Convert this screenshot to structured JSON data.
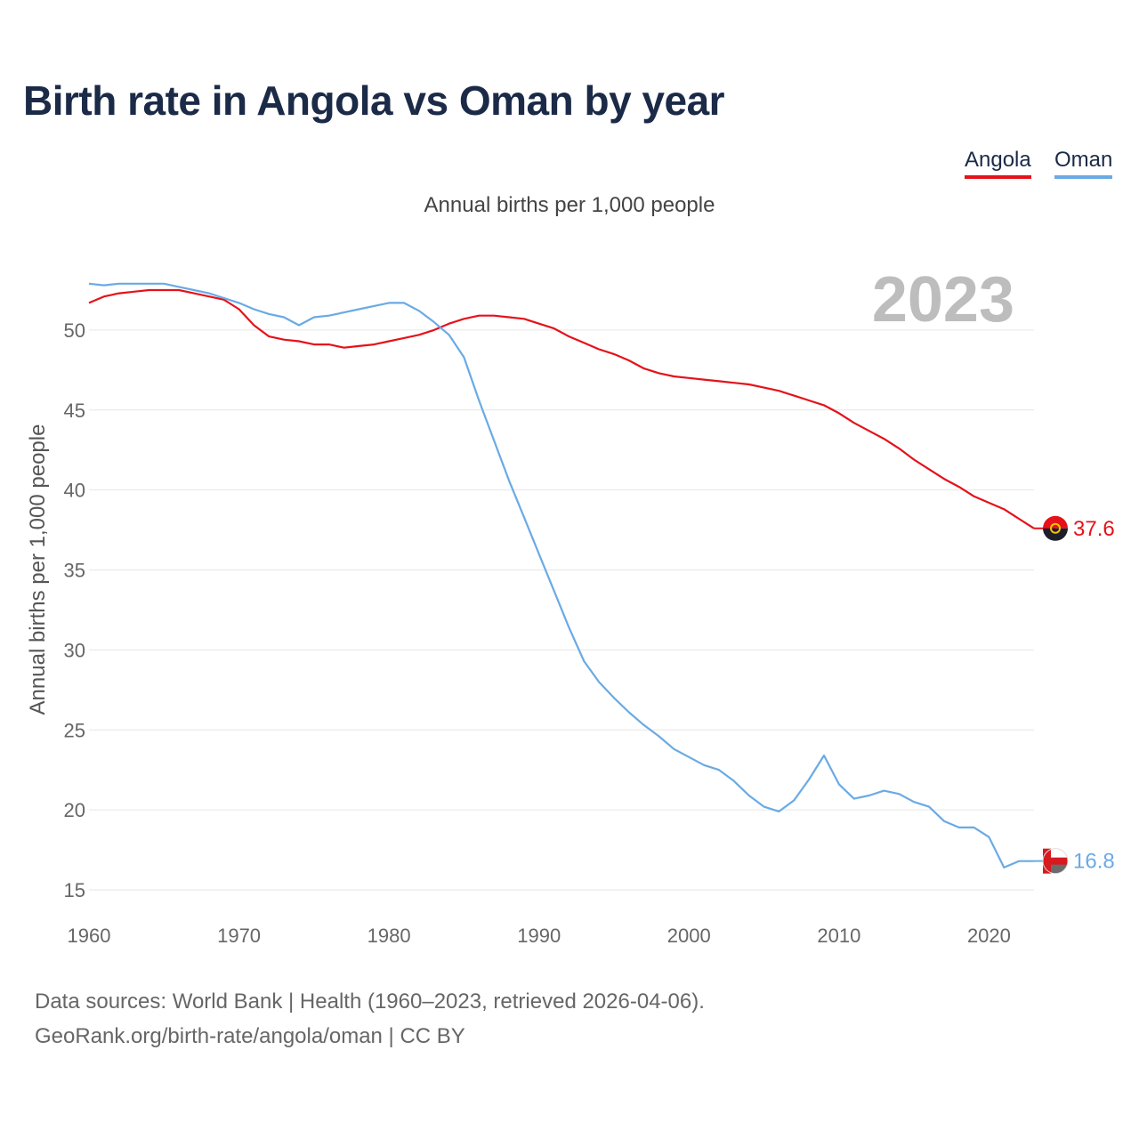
{
  "header": {
    "title": "Birth rate in Angola vs Oman by year",
    "subtitle": "Annual births per 1,000 people"
  },
  "legend": {
    "angola": "Angola",
    "oman": "Oman"
  },
  "footer": {
    "line1": "Data sources: World Bank | Health (1960–2023, retrieved 2026-04-06).",
    "line2": "GeoRank.org/birth-rate/angola/oman | CC BY"
  },
  "chart_data": {
    "type": "line",
    "title": "Birth rate in Angola vs Oman by year",
    "subtitle": "Annual births per 1,000 people",
    "xlabel": "",
    "ylabel": "Annual births per 1,000 people",
    "year_label": "2023",
    "xlim": [
      1960,
      2023
    ],
    "ylim": [
      14,
      53.5
    ],
    "x_ticks": [
      1960,
      1970,
      1980,
      1990,
      2000,
      2010,
      2020
    ],
    "y_ticks": [
      15,
      20,
      25,
      30,
      35,
      40,
      45,
      50
    ],
    "grid": true,
    "legend_position": "top-right",
    "x": [
      1960,
      1961,
      1962,
      1963,
      1964,
      1965,
      1966,
      1967,
      1968,
      1969,
      1970,
      1971,
      1972,
      1973,
      1974,
      1975,
      1976,
      1977,
      1978,
      1979,
      1980,
      1981,
      1982,
      1983,
      1984,
      1985,
      1986,
      1987,
      1988,
      1989,
      1990,
      1991,
      1992,
      1993,
      1994,
      1995,
      1996,
      1997,
      1998,
      1999,
      2000,
      2001,
      2002,
      2003,
      2004,
      2005,
      2006,
      2007,
      2008,
      2009,
      2010,
      2011,
      2012,
      2013,
      2014,
      2015,
      2016,
      2017,
      2018,
      2019,
      2020,
      2021,
      2022,
      2023
    ],
    "series": [
      {
        "name": "Angola",
        "color": "#e5121a",
        "end_label": "37.6",
        "values": [
          51.7,
          52.1,
          52.3,
          52.4,
          52.5,
          52.5,
          52.5,
          52.3,
          52.1,
          51.9,
          51.3,
          50.3,
          49.6,
          49.4,
          49.3,
          49.1,
          49.1,
          48.9,
          49.0,
          49.1,
          49.3,
          49.5,
          49.7,
          50.0,
          50.4,
          50.7,
          50.9,
          50.9,
          50.8,
          50.7,
          50.4,
          50.1,
          49.6,
          49.2,
          48.8,
          48.5,
          48.1,
          47.6,
          47.3,
          47.1,
          47.0,
          46.9,
          46.8,
          46.7,
          46.6,
          46.4,
          46.2,
          45.9,
          45.6,
          45.3,
          44.8,
          44.2,
          43.7,
          43.2,
          42.6,
          41.9,
          41.3,
          40.7,
          40.2,
          39.6,
          39.2,
          38.8,
          38.2,
          37.6
        ]
      },
      {
        "name": "Oman",
        "color": "#6aaae4",
        "end_label": "16.8",
        "values": [
          52.9,
          52.8,
          52.9,
          52.9,
          52.9,
          52.9,
          52.7,
          52.5,
          52.3,
          52.0,
          51.7,
          51.3,
          51.0,
          50.8,
          50.3,
          50.8,
          50.9,
          51.1,
          51.3,
          51.5,
          51.7,
          51.7,
          51.2,
          50.5,
          49.7,
          48.3,
          45.6,
          43.1,
          40.6,
          38.3,
          36.0,
          33.7,
          31.4,
          29.3,
          28.0,
          27.0,
          26.1,
          25.3,
          24.6,
          23.8,
          23.3,
          22.8,
          22.5,
          21.8,
          20.9,
          20.2,
          19.9,
          20.6,
          21.9,
          23.4,
          21.6,
          20.7,
          20.9,
          21.2,
          21.0,
          20.5,
          20.2,
          19.3,
          18.9,
          18.9,
          18.3,
          16.4,
          16.8,
          16.8
        ]
      }
    ]
  }
}
